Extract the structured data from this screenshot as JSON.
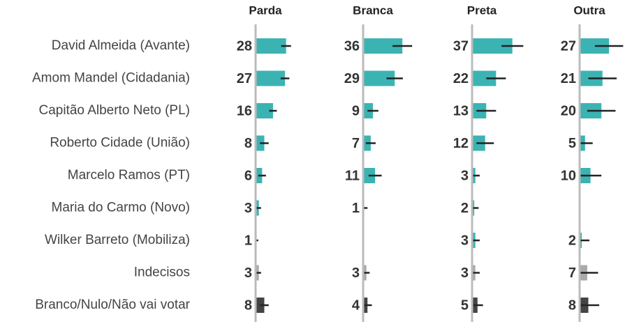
{
  "chart_data": {
    "type": "bar",
    "categories": [
      "David Almeida (Avante)",
      "Amom Mandel (Cidadania)",
      "Capitão Alberto Neto (PL)",
      "Roberto Cidade (União)",
      "Marcelo Ramos (PT)",
      "Maria do Carmo (Novo)",
      "Wilker Barreto (Mobiliza)",
      "Indecisos",
      "Branco/Nulo/Não vai votar"
    ],
    "category_colors": [
      "#3bb3b3",
      "#3bb3b3",
      "#3bb3b3",
      "#3bb3b3",
      "#3bb3b3",
      "#3bb3b3",
      "#3bb3b3",
      "#aaaaaa",
      "#444444"
    ],
    "xlim": [
      0,
      100
    ],
    "series": [
      {
        "name": "Parda",
        "values": [
          28,
          27,
          16,
          8,
          6,
          3,
          1,
          3,
          8
        ],
        "errors": [
          4.5,
          4,
          3.5,
          4,
          3.5,
          2,
          1.5,
          2,
          4
        ]
      },
      {
        "name": "Branca",
        "values": [
          36,
          29,
          9,
          7,
          11,
          1,
          null,
          3,
          4
        ],
        "errors": [
          9,
          7.5,
          5,
          4.5,
          6,
          3,
          null,
          3,
          4
        ]
      },
      {
        "name": "Preta",
        "values": [
          37,
          22,
          13,
          12,
          3,
          2,
          3,
          3,
          5
        ],
        "errors": [
          10,
          9,
          9,
          8,
          4,
          4,
          4,
          4,
          5
        ]
      },
      {
        "name": "Outra",
        "values": [
          27,
          21,
          20,
          5,
          10,
          null,
          2,
          7,
          8
        ],
        "errors": [
          13,
          13,
          13,
          7,
          10,
          null,
          7,
          10,
          10
        ]
      }
    ]
  }
}
